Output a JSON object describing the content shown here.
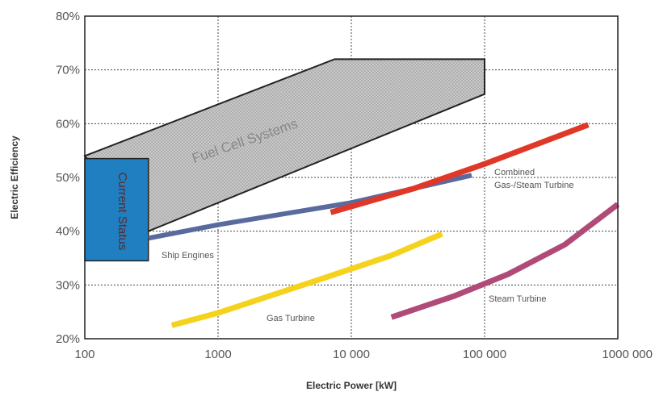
{
  "chart_data": {
    "type": "line",
    "xlabel": "Electric Power [kW]",
    "ylabel": "Electric Efficiency",
    "x_scale": "log",
    "xlim": [
      100,
      1000000
    ],
    "ylim": [
      20,
      80
    ],
    "grid": true,
    "x_ticks": [
      100,
      1000,
      10000,
      100000,
      1000000
    ],
    "x_tick_labels": [
      "100",
      "1000",
      "10 000",
      "100 000",
      "1000 000"
    ],
    "y_ticks": [
      20,
      30,
      40,
      50,
      60,
      70,
      80
    ],
    "y_tick_labels": [
      "20%",
      "30%",
      "40%",
      "50%",
      "60%",
      "70%",
      "80%"
    ],
    "regions": [
      {
        "label": "Fuel Cell Systems",
        "color": "#c8c8c8",
        "polygon": [
          [
            100,
            54
          ],
          [
            7500,
            72
          ],
          [
            100000,
            72
          ],
          [
            100000,
            65.5
          ],
          [
            300,
            40
          ]
        ]
      },
      {
        "label": "Current Status",
        "color": "#1f7fc0",
        "polygon": [
          [
            100,
            53.5
          ],
          [
            300,
            53.5
          ],
          [
            300,
            34.5
          ],
          [
            100,
            34.5
          ]
        ]
      }
    ],
    "series": [
      {
        "label_lines": [
          "Ship Engines"
        ],
        "color": "#5a6a9e",
        "points": [
          [
            300,
            38.7
          ],
          [
            1000,
            41.2
          ],
          [
            10000,
            45.3
          ],
          [
            80000,
            50.4
          ]
        ]
      },
      {
        "label_lines": [
          "Combined",
          "Gas-/Steam Turbine"
        ],
        "color": "#e03828",
        "points": [
          [
            7000,
            43.5
          ],
          [
            30000,
            48
          ],
          [
            100000,
            52.5
          ],
          [
            600000,
            59.8
          ]
        ]
      },
      {
        "label_lines": [
          "Gas Turbine"
        ],
        "color": "#f5d21c",
        "points": [
          [
            450,
            22.5
          ],
          [
            1000,
            24.8
          ],
          [
            5000,
            30.5
          ],
          [
            20000,
            35.5
          ],
          [
            48000,
            39.5
          ]
        ]
      },
      {
        "label_lines": [
          "Steam Turbine"
        ],
        "color": "#b04a78",
        "points": [
          [
            20000,
            24
          ],
          [
            60000,
            28
          ],
          [
            150000,
            32
          ],
          [
            400000,
            37.5
          ],
          [
            1000000,
            45
          ]
        ]
      }
    ]
  }
}
